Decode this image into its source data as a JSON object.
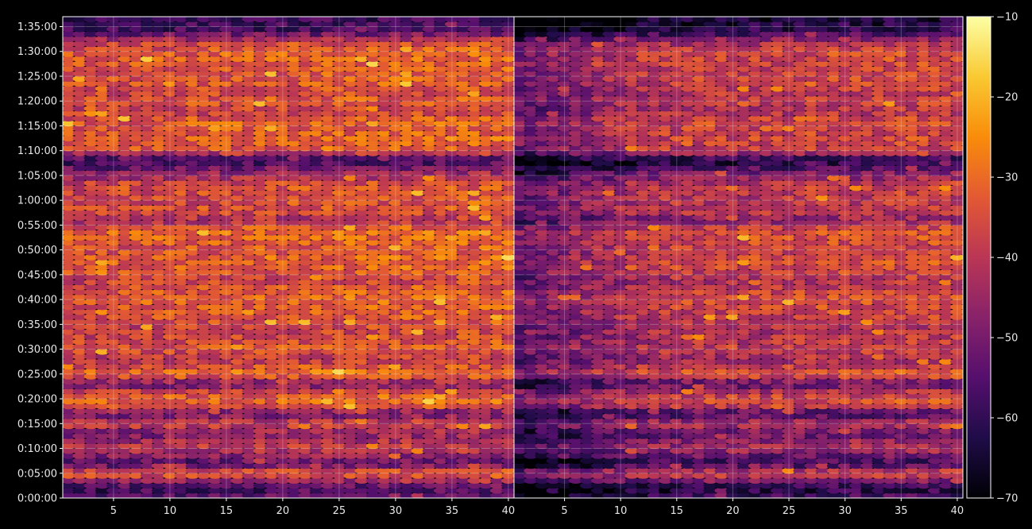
{
  "chart_data": {
    "type": "heatmap",
    "title": "",
    "xlabel": "",
    "ylabel": "",
    "colormap": "inferno",
    "grid": true,
    "panels": [
      {
        "name": "",
        "xlim": [
          1,
          40
        ],
        "x_ticks": [
          5,
          10,
          15,
          20,
          25,
          30,
          35,
          40
        ],
        "x_tick_labels": [
          "5",
          "10",
          "15",
          "20",
          "25",
          "30",
          "35",
          "40"
        ]
      },
      {
        "name": "",
        "xlim": [
          1,
          40
        ],
        "x_ticks": [
          5,
          10,
          15,
          20,
          25,
          30,
          35,
          40
        ],
        "x_tick_labels": [
          "5",
          "10",
          "15",
          "20",
          "25",
          "30",
          "35",
          "40"
        ]
      }
    ],
    "y_axis": {
      "unit": "seconds",
      "ylim": [
        0,
        5820
      ],
      "ticks": [
        0,
        300,
        600,
        900,
        1200,
        1500,
        1800,
        2100,
        2400,
        2700,
        3000,
        3300,
        3600,
        3900,
        4200,
        4500,
        4800,
        5100,
        5400,
        5700
      ],
      "tick_labels": [
        "0:00:00",
        "0:05:00",
        "0:10:00",
        "0:15:00",
        "0:20:00",
        "0:25:00",
        "0:30:00",
        "0:35:00",
        "0:40:00",
        "0:45:00",
        "0:50:00",
        "0:55:00",
        "1:00:00",
        "1:05:00",
        "1:10:00",
        "1:15:00",
        "1:20:00",
        "1:25:00",
        "1:30:00",
        "1:35:00"
      ]
    },
    "colorbar": {
      "range": [
        -70,
        -10
      ],
      "ticks": [
        -70,
        -60,
        -50,
        -40,
        -30,
        -20,
        -10
      ],
      "tick_labels": [
        "−70",
        "−60",
        "−50",
        "−40",
        "−30",
        "−20",
        "−10"
      ]
    },
    "row_intensity_profile": {
      "time_s": [
        0,
        120,
        300,
        420,
        600,
        780,
        900,
        1020,
        1140,
        1260,
        1380,
        1500,
        1560,
        1680,
        1800,
        1920,
        2040,
        2160,
        2280,
        2400,
        2520,
        2640,
        2760,
        2880,
        3000,
        3120,
        3240,
        3360,
        3480,
        3600,
        3780,
        3960,
        4080,
        4200,
        4320,
        4440,
        4560,
        4680,
        4800,
        4920,
        5040,
        5160,
        5280,
        5400,
        5520,
        5640,
        5820
      ],
      "mean_value": [
        -55,
        -60,
        -33,
        -58,
        -40,
        -50,
        -38,
        -55,
        -32,
        -36,
        -52,
        -30,
        -34,
        -42,
        -36,
        -38,
        -40,
        -36,
        -35,
        -33,
        -35,
        -40,
        -34,
        -33,
        -36,
        -33,
        -32,
        -45,
        -36,
        -38,
        -36,
        -50,
        -62,
        -36,
        -34,
        -35,
        -33,
        -40,
        -35,
        -38,
        -34,
        -36,
        -34,
        -34,
        -40,
        -58,
        -62
      ]
    }
  }
}
